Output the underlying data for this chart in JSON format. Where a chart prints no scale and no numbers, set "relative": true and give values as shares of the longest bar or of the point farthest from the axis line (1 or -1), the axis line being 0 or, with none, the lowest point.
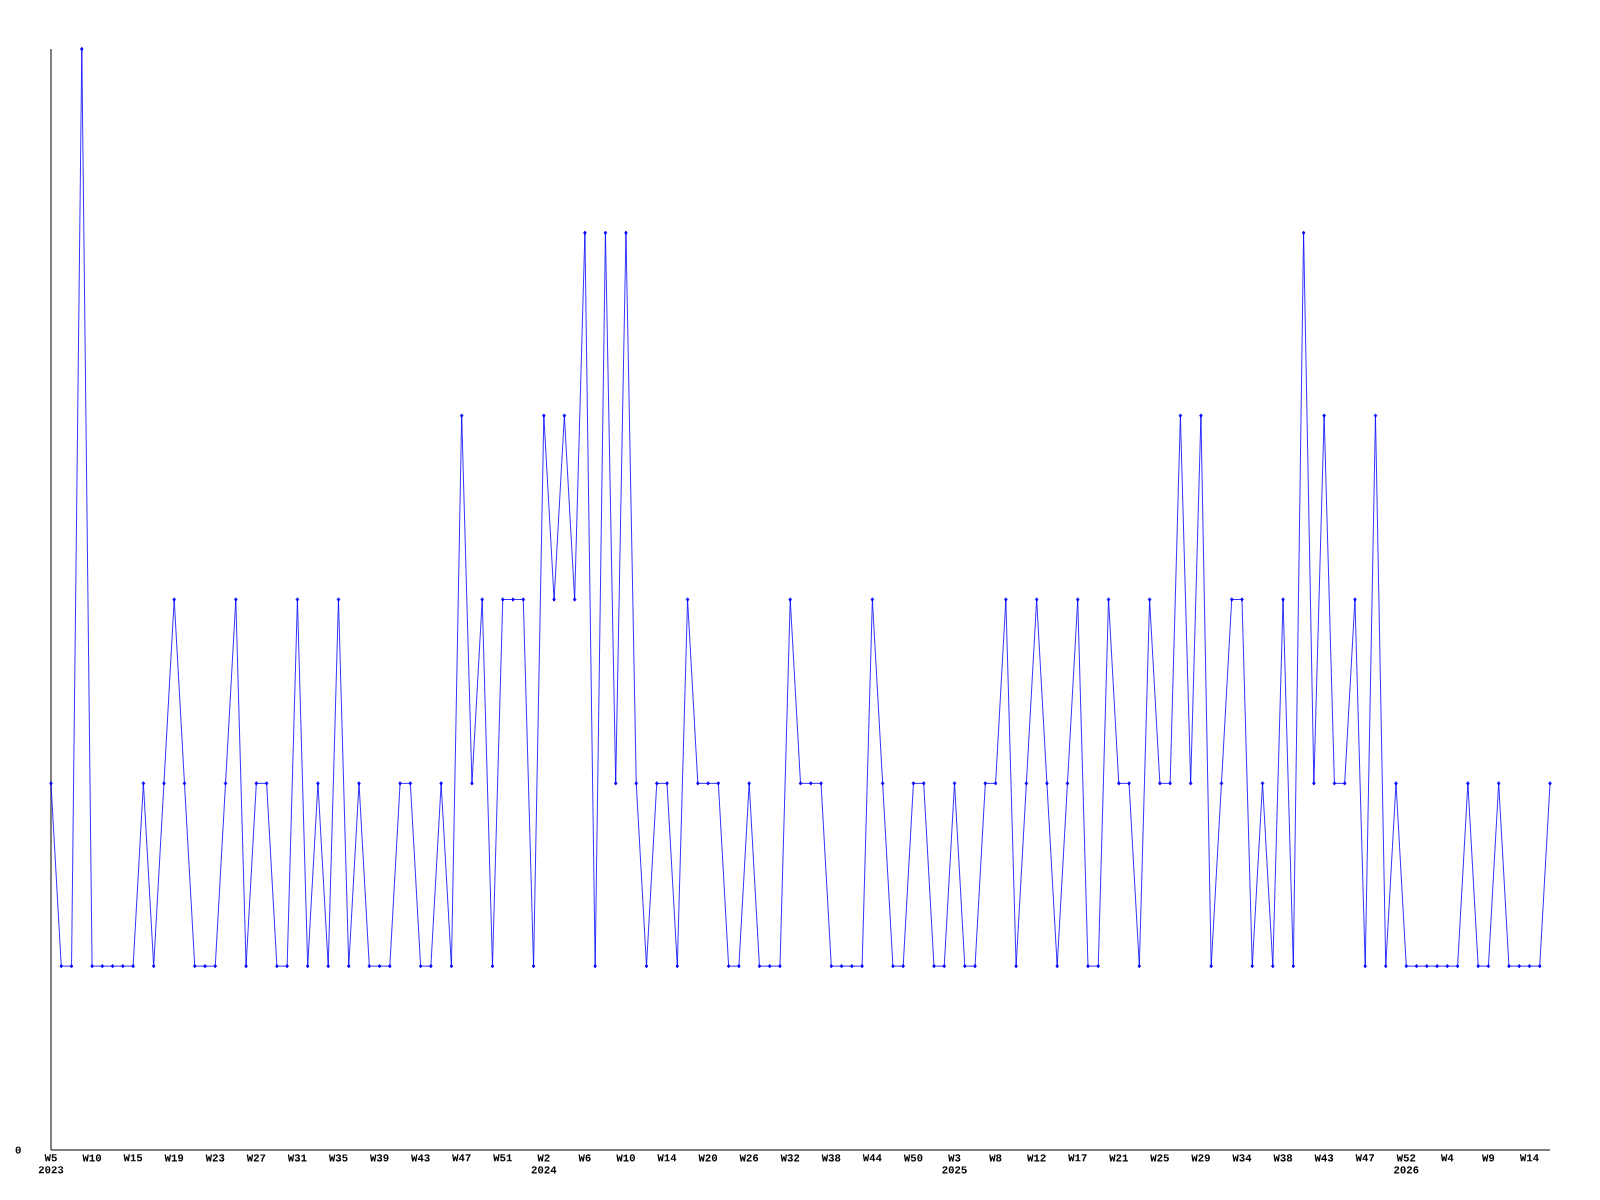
{
  "chart_data": {
    "type": "line",
    "relative": true,
    "color": "#0000ff",
    "marker": "diamond",
    "line_style": "solid",
    "categories": [
      "W5 2023",
      null,
      null,
      null,
      "W10",
      null,
      null,
      null,
      "W15",
      null,
      null,
      null,
      "W19",
      null,
      null,
      null,
      "W23",
      null,
      null,
      null,
      "W27",
      null,
      null,
      null,
      "W31",
      null,
      null,
      null,
      "W35",
      null,
      null,
      null,
      "W39",
      null,
      null,
      null,
      "W43",
      null,
      null,
      null,
      "W47",
      null,
      null,
      null,
      "W51",
      null,
      null,
      null,
      "W2 2024",
      null,
      null,
      null,
      "W6",
      null,
      null,
      null,
      "W10",
      null,
      null,
      null,
      "W14",
      null,
      null,
      null,
      "W20",
      null,
      null,
      null,
      "W26",
      null,
      null,
      null,
      "W32",
      null,
      null,
      null,
      "W38",
      null,
      null,
      null,
      "W44",
      null,
      null,
      null,
      "W50",
      null,
      null,
      null,
      "W3 2025",
      null,
      null,
      null,
      "W8",
      null,
      null,
      null,
      "W12",
      null,
      null,
      null,
      "W17",
      null,
      null,
      null,
      "W21",
      null,
      null,
      null,
      "W25",
      null,
      null,
      null,
      "W29",
      null,
      null,
      null,
      "W34",
      null,
      null,
      null,
      "W38",
      null,
      null,
      null,
      "W43",
      null,
      null,
      null,
      "W47",
      null,
      null,
      null,
      "W52 2026",
      null,
      null,
      null,
      "W4",
      null,
      null,
      null,
      "W9",
      null,
      null,
      null,
      "W14",
      null,
      null
    ],
    "values": [
      0.333,
      0.167,
      0.167,
      1,
      0.167,
      0.167,
      0.167,
      0.167,
      0.167,
      0.333,
      0.167,
      0.333,
      0.5,
      0.333,
      0.167,
      0.167,
      0.167,
      0.333,
      0.5,
      0.167,
      0.333,
      0.333,
      0.167,
      0.167,
      0.5,
      0.167,
      0.333,
      0.167,
      0.5,
      0.167,
      0.333,
      0.167,
      0.167,
      0.167,
      0.333,
      0.333,
      0.167,
      0.167,
      0.333,
      0.167,
      0.667,
      0.333,
      0.5,
      0.167,
      0.5,
      0.5,
      0.5,
      0.167,
      0.667,
      0.5,
      0.667,
      0.5,
      0.833,
      0.167,
      0.833,
      0.333,
      0.833,
      0.333,
      0.167,
      0.333,
      0.333,
      0.167,
      0.5,
      0.333,
      0.333,
      0.333,
      0.167,
      0.167,
      0.333,
      0.167,
      0.167,
      0.167,
      0.5,
      0.333,
      0.333,
      0.333,
      0.167,
      0.167,
      0.167,
      0.167,
      0.5,
      0.333,
      0.167,
      0.167,
      0.333,
      0.333,
      0.167,
      0.167,
      0.333,
      0.167,
      0.167,
      0.333,
      0.333,
      0.5,
      0.167,
      0.333,
      0.5,
      0.333,
      0.167,
      0.333,
      0.5,
      0.167,
      0.167,
      0.5,
      0.333,
      0.333,
      0.167,
      0.5,
      0.333,
      0.333,
      0.667,
      0.333,
      0.667,
      0.167,
      0.333,
      0.5,
      0.5,
      0.167,
      0.333,
      0.167,
      0.5,
      0.167,
      0.833,
      0.333,
      0.667,
      0.333,
      0.333,
      0.5,
      0.167,
      0.667,
      0.167,
      0.333,
      0.167,
      0.167,
      0.167,
      0.167,
      0.167,
      0.167,
      0.333,
      0.167,
      0.167,
      0.333,
      0.167,
      0.167,
      0.167,
      0.167,
      0.333
    ],
    "annotations": [
      "0"
    ]
  }
}
